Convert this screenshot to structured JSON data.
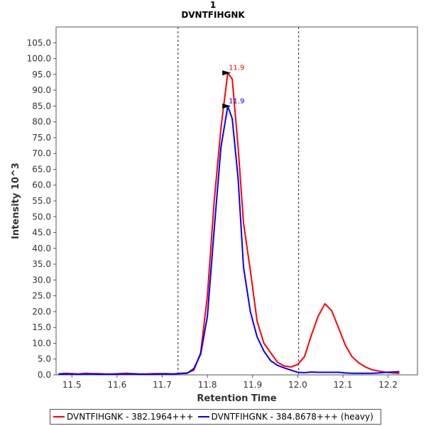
{
  "title": "1",
  "subtitle": "DVNTFIHGNK",
  "chart_data": {
    "type": "line",
    "xlabel": "Retention Time",
    "ylabel": "Intensity 10^3",
    "xlim": [
      11.465,
      12.265
    ],
    "ylim": [
      0,
      110
    ],
    "xticks": [
      "11.5",
      "11.6",
      "11.7",
      "11.8",
      "11.9",
      "12.0",
      "12.1",
      "12.2"
    ],
    "xtick_values": [
      11.5,
      11.6,
      11.7,
      11.8,
      11.9,
      12.0,
      12.1,
      12.2
    ],
    "yticks": [
      "0.0",
      "5.0",
      "10.0",
      "15.0",
      "20.0",
      "25.0",
      "30.0",
      "35.0",
      "40.0",
      "45.0",
      "50.0",
      "55.0",
      "60.0",
      "65.0",
      "70.0",
      "75.0",
      "80.0",
      "85.0",
      "90.0",
      "95.0",
      "100.0",
      "105.0"
    ],
    "ytick_values": [
      0,
      5,
      10,
      15,
      20,
      25,
      30,
      35,
      40,
      45,
      50,
      55,
      60,
      65,
      70,
      75,
      80,
      85,
      90,
      95,
      100,
      105
    ],
    "grid": false,
    "vlines": [
      11.735,
      12.002
    ],
    "legend_position": "bottom",
    "series": [
      {
        "name": "DVNTFIHGNK - 382.1964+++",
        "color": "#ff0000",
        "x": [
          11.47,
          11.485,
          11.5,
          11.515,
          11.53,
          11.545,
          11.56,
          11.575,
          11.59,
          11.605,
          11.62,
          11.635,
          11.65,
          11.665,
          11.68,
          11.695,
          11.71,
          11.725,
          11.74,
          11.755,
          11.77,
          11.785,
          11.8,
          11.815,
          11.83,
          11.845,
          11.855,
          11.868,
          11.88,
          11.895,
          11.91,
          11.925,
          11.94,
          11.955,
          11.97,
          11.985,
          12.0,
          12.015,
          12.03,
          12.045,
          12.06,
          12.075,
          12.09,
          12.105,
          12.12,
          12.135,
          12.15,
          12.165,
          12.18,
          12.195,
          12.21,
          12.225
        ],
        "values": [
          0.3,
          0.5,
          0.4,
          0.3,
          0.5,
          0.4,
          0.4,
          0.3,
          0.3,
          0.4,
          0.5,
          0.4,
          0.3,
          0.3,
          0.4,
          0.4,
          0.4,
          0.3,
          0.5,
          0.6,
          1.5,
          7,
          25,
          55,
          78,
          95.5,
          93.5,
          72,
          48,
          33,
          17,
          10,
          7,
          4,
          2.8,
          2.5,
          3.3,
          5.8,
          12.5,
          18.5,
          22.5,
          20.3,
          15,
          9.5,
          5.8,
          3.8,
          2.5,
          1.6,
          1.2,
          0.8,
          0.6,
          0.5
        ]
      },
      {
        "name": "DVNTFIHGNK - 384.8678+++ (heavy)",
        "color": "#0000ff",
        "x": [
          11.47,
          11.485,
          11.5,
          11.515,
          11.53,
          11.545,
          11.56,
          11.575,
          11.59,
          11.605,
          11.62,
          11.635,
          11.65,
          11.665,
          11.68,
          11.695,
          11.71,
          11.725,
          11.74,
          11.755,
          11.77,
          11.785,
          11.8,
          11.815,
          11.83,
          11.845,
          11.855,
          11.868,
          11.88,
          11.895,
          11.91,
          11.925,
          11.94,
          11.955,
          11.97,
          11.985,
          12.0,
          12.015,
          12.03,
          12.045,
          12.06,
          12.075,
          12.09,
          12.105,
          12.12,
          12.135,
          12.15,
          12.165,
          12.18,
          12.195,
          12.21,
          12.225
        ],
        "values": [
          0.2,
          0.3,
          0.3,
          0.2,
          0.3,
          0.3,
          0.2,
          0.2,
          0.2,
          0.3,
          0.3,
          0.3,
          0.2,
          0.2,
          0.2,
          0.3,
          0.3,
          0.3,
          0.4,
          0.5,
          2,
          6.5,
          18.5,
          46,
          72,
          85,
          81,
          62,
          34,
          20,
          12,
          7.5,
          4.5,
          3,
          2.2,
          1.5,
          0.8,
          0.7,
          0.9,
          0.8,
          0.8,
          0.8,
          0.8,
          0.6,
          0.5,
          0.5,
          0.5,
          0.5,
          0.6,
          0.8,
          0.9,
          1.0
        ]
      }
    ],
    "annotations": [
      {
        "text": "11.9",
        "x": 11.855,
        "y": 95.5,
        "color": "#ff0000"
      },
      {
        "text": "11.9",
        "x": 11.855,
        "y": 85,
        "color": "#0000ff"
      }
    ]
  }
}
